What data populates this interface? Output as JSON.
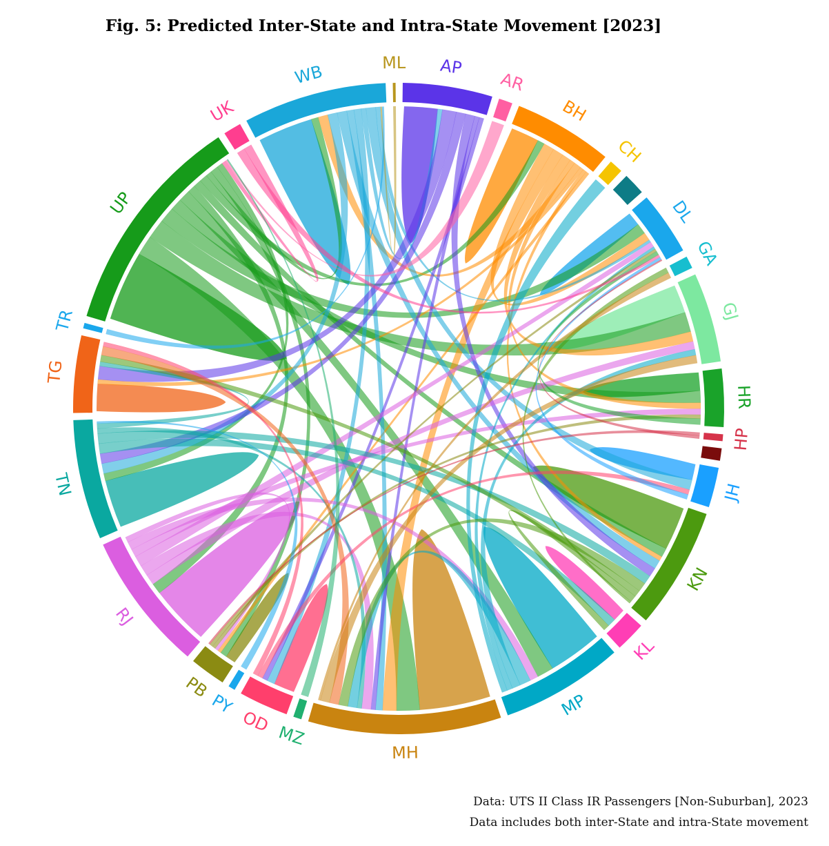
{
  "title": "Fig. 5: Predicted Inter-State and Intra-State Movement [2023]",
  "footer": {
    "source": "Data: UTS II Class IR Passengers [Non-Suburban], 2023",
    "note": "Data includes both inter-State and intra-State movement"
  },
  "chart_data": {
    "type": "chord",
    "title": "Fig. 5: Predicted Inter-State and Intra-State Movement [2023]",
    "states": [
      {
        "code": "ML",
        "share": 0.2,
        "color": "#b8961e"
      },
      {
        "code": "AP",
        "share": 6.5,
        "color": "#5b34e8"
      },
      {
        "code": "AR",
        "share": 1.0,
        "color": "#ff5fa2"
      },
      {
        "code": "BH",
        "share": 7.2,
        "color": "#ff8c00"
      },
      {
        "code": "CH",
        "share": 1.0,
        "color": "#f5c400"
      },
      {
        "code": "",
        "share": 1.6,
        "color": "#0e7c86"
      },
      {
        "code": "DL",
        "share": 4.6,
        "color": "#1aa7ec"
      },
      {
        "code": "GA",
        "share": 0.9,
        "color": "#17becf"
      },
      {
        "code": "GJ",
        "share": 6.5,
        "color": "#7de8a0"
      },
      {
        "code": "HR",
        "share": 4.2,
        "color": "#1aa32a"
      },
      {
        "code": "HP",
        "share": 0.5,
        "color": "#d6334a"
      },
      {
        "code": "",
        "share": 0.9,
        "color": "#7a0c0c"
      },
      {
        "code": "JH",
        "share": 2.9,
        "color": "#1aa0ff"
      },
      {
        "code": "KN",
        "share": 8.8,
        "color": "#4c9a0f"
      },
      {
        "code": "KL",
        "share": 2.2,
        "color": "#ff3eb5"
      },
      {
        "code": "MP",
        "share": 8.9,
        "color": "#00a8c6"
      },
      {
        "code": "MH",
        "share": 14.0,
        "color": "#c98410"
      },
      {
        "code": "MZ",
        "share": 0.6,
        "color": "#20b070"
      },
      {
        "code": "OD",
        "share": 3.6,
        "color": "#ff3f6c"
      },
      {
        "code": "PY",
        "share": 0.5,
        "color": "#1aa7ec"
      },
      {
        "code": "PB",
        "share": 2.6,
        "color": "#8b8b12"
      },
      {
        "code": "RJ",
        "share": 10.1,
        "color": "#db5ee0"
      },
      {
        "code": "TN",
        "share": 8.7,
        "color": "#0aa8a0"
      },
      {
        "code": "TG",
        "share": 5.6,
        "color": "#f06418"
      },
      {
        "code": "TR",
        "share": 0.4,
        "color": "#1aa7ec"
      },
      {
        "code": "UP",
        "share": 16.2,
        "color": "#169b1a"
      },
      {
        "code": "UK",
        "share": 1.3,
        "color": "#ff3e8f"
      },
      {
        "code": "WB",
        "share": 10.4,
        "color": "#1aa7d9"
      }
    ],
    "intra_state": [
      "AP",
      "BH",
      "DL",
      "GJ",
      "HR",
      "JH",
      "KN",
      "KL",
      "MP",
      "MH",
      "OD",
      "PB",
      "RJ",
      "TN",
      "TG",
      "UP",
      "WB"
    ],
    "links": [
      [
        "UP",
        "MH",
        5
      ],
      [
        "UP",
        "GJ",
        5
      ],
      [
        "UP",
        "DL",
        4
      ],
      [
        "UP",
        "HR",
        3
      ],
      [
        "UP",
        "MP",
        3
      ],
      [
        "UP",
        "RJ",
        2
      ],
      [
        "UP",
        "KN",
        2
      ],
      [
        "UP",
        "BH",
        2
      ],
      [
        "UP",
        "WB",
        1.5
      ],
      [
        "UP",
        "PB",
        2
      ],
      [
        "UP",
        "TN",
        1.5
      ],
      [
        "BH",
        "DL",
        3
      ],
      [
        "BH",
        "MH",
        3
      ],
      [
        "BH",
        "GJ",
        2.5
      ],
      [
        "BH",
        "HR",
        1.5
      ],
      [
        "BH",
        "WB",
        2
      ],
      [
        "BH",
        "TG",
        1
      ],
      [
        "BH",
        "KN",
        1
      ],
      [
        "BH",
        "PB",
        1
      ],
      [
        "WB",
        "TN",
        2
      ],
      [
        "WB",
        "KN",
        2
      ],
      [
        "WB",
        "MH",
        1.5
      ],
      [
        "WB",
        "OD",
        1.5
      ],
      [
        "WB",
        "AP",
        1
      ],
      [
        "WB",
        "JH",
        2
      ],
      [
        "WB",
        "DL",
        1
      ],
      [
        "AP",
        "TG",
        3
      ],
      [
        "AP",
        "TN",
        2
      ],
      [
        "AP",
        "KN",
        2
      ],
      [
        "AP",
        "MH",
        1
      ],
      [
        "AP",
        "OD",
        1
      ],
      [
        "RJ",
        "GJ",
        2
      ],
      [
        "RJ",
        "MH",
        2
      ],
      [
        "RJ",
        "DL",
        2
      ],
      [
        "RJ",
        "HR",
        1.5
      ],
      [
        "RJ",
        "MP",
        1.5
      ],
      [
        "RJ",
        "PB",
        1
      ],
      [
        "TN",
        "KL",
        2
      ],
      [
        "TN",
        "KN",
        2
      ],
      [
        "TN",
        "MH",
        1
      ],
      [
        "TN",
        "TG",
        1
      ],
      [
        "MP",
        "MH",
        2
      ],
      [
        "MP",
        "GJ",
        1.5
      ],
      [
        "MP",
        "DL",
        1
      ],
      [
        "MP",
        "CH",
        1
      ],
      [
        "KN",
        "MH",
        2
      ],
      [
        "KN",
        "TG",
        1.5
      ],
      [
        "KN",
        "KL",
        1.5
      ],
      [
        "KN",
        "GA",
        0.5
      ],
      [
        "TG",
        "MH",
        2
      ],
      [
        "OD",
        "JH",
        1
      ],
      [
        "OD",
        "TG",
        1
      ],
      [
        "MH",
        "GJ",
        2
      ],
      [
        "MH",
        "GA",
        0.5
      ],
      [
        "PB",
        "DL",
        1
      ],
      [
        "PB",
        "HR",
        1
      ],
      [
        "HR",
        "DL",
        1.5
      ],
      [
        "UK",
        "DL",
        1
      ],
      [
        "UK",
        "UP",
        1
      ],
      [
        "JH",
        "DL",
        1
      ],
      [
        "AR",
        "UP",
        0.5
      ],
      [
        "HP",
        "PB",
        0.5
      ],
      [
        "HP",
        "DL",
        0.5
      ],
      [
        "ML",
        "WB",
        0.3
      ],
      [
        "TR",
        "WB",
        0.4
      ],
      [
        "MZ",
        "UP",
        0.3
      ],
      [
        "PY",
        "TN",
        0.4
      ]
    ]
  }
}
